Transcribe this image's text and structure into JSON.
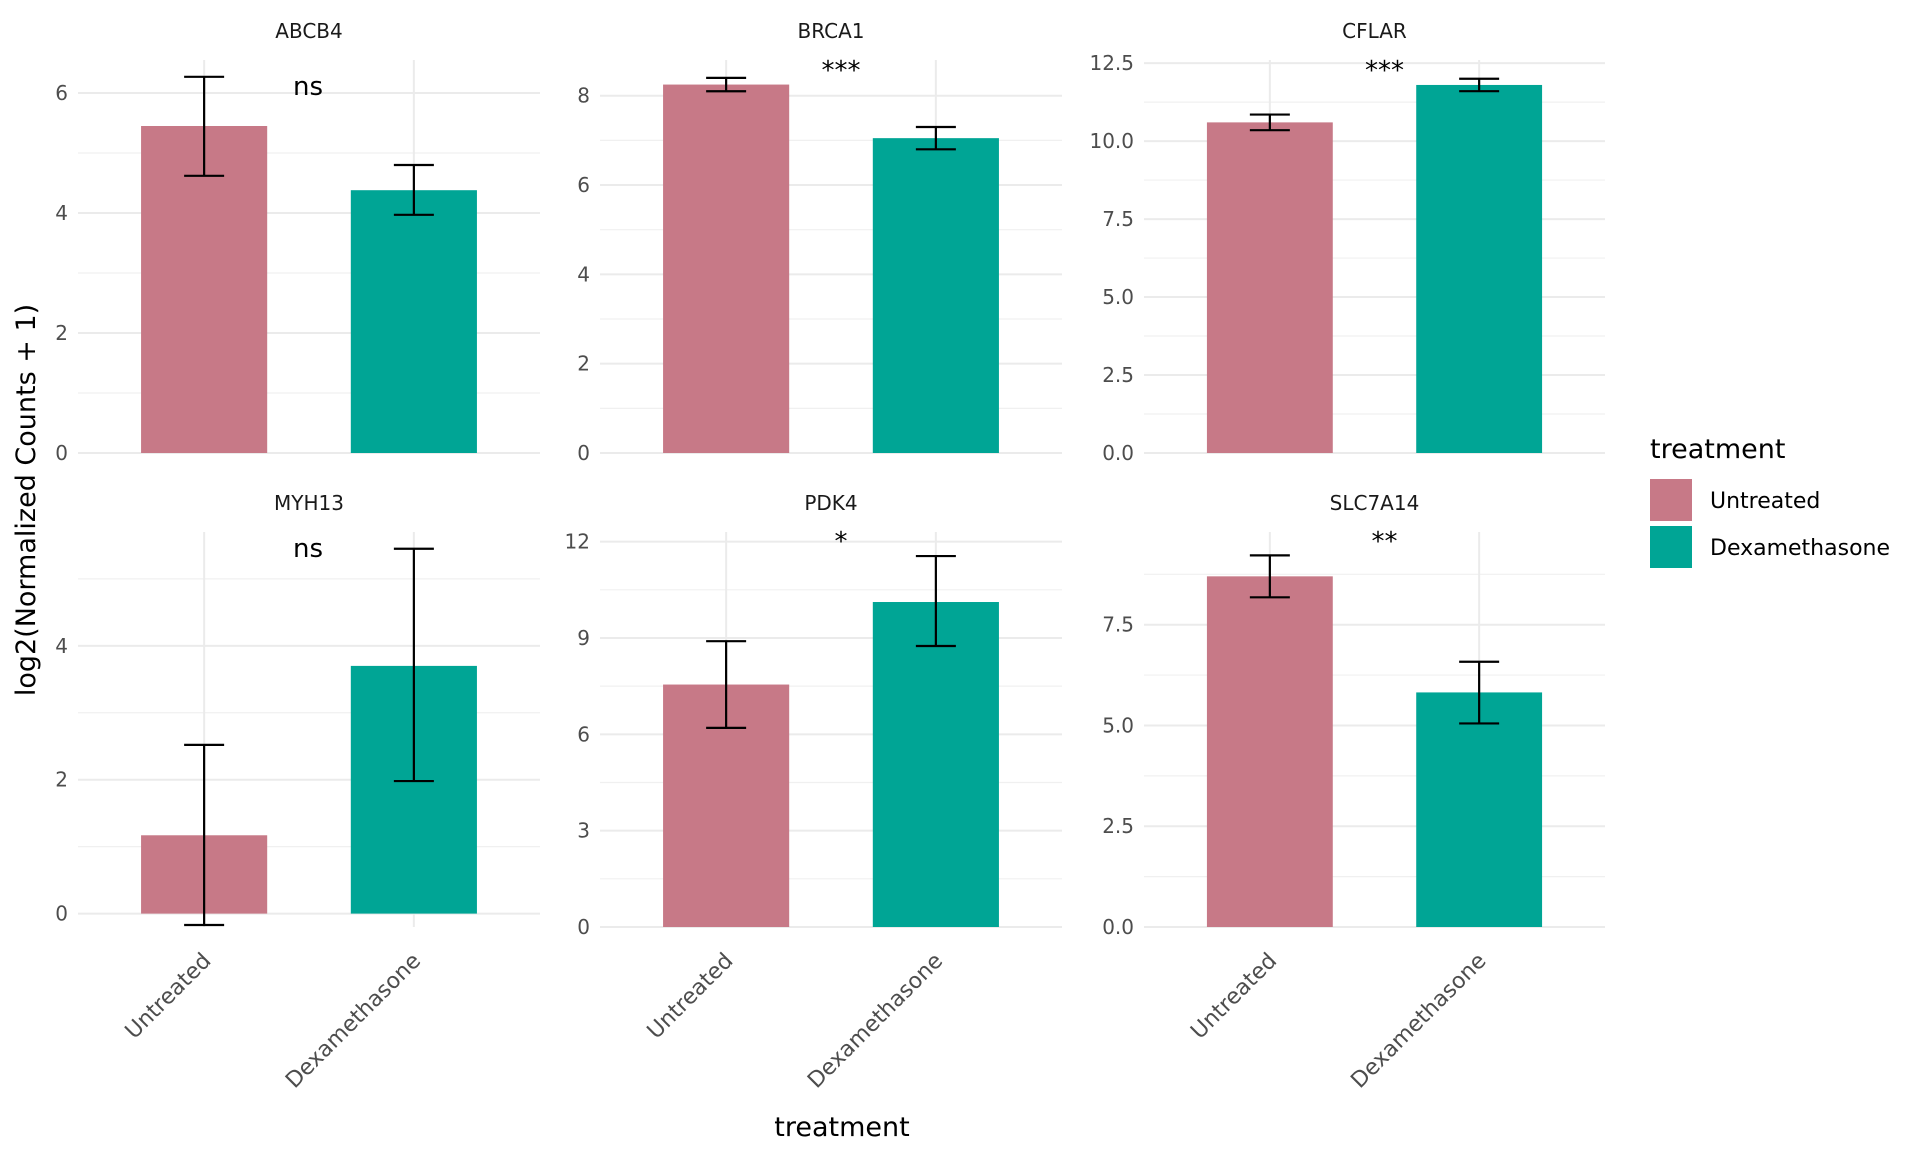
{
  "chart_data": {
    "type": "bar",
    "ylabel": "log2(Normalized Counts + 1)",
    "xlabel": "treatment",
    "categories": [
      "Untreated",
      "Dexamethasone"
    ],
    "colors": {
      "Untreated": "#C77987",
      "Dexamethasone": "#00A595"
    },
    "legend": {
      "title": "treatment",
      "position": "right",
      "entries": [
        {
          "label": "Untreated",
          "color": "#C77987"
        },
        {
          "label": "Dexamethasone",
          "color": "#00A595"
        }
      ]
    },
    "panels": [
      {
        "gene": "ABCB4",
        "significance": "ns",
        "ylim": [
          0,
          6.55
        ],
        "yticks": [
          "0",
          "2",
          "4",
          "6"
        ],
        "ytick_values": [
          0,
          2,
          4,
          6
        ],
        "values": [
          5.45,
          4.38
        ],
        "err_low": [
          4.62,
          3.97
        ],
        "err_high": [
          6.27,
          4.8
        ]
      },
      {
        "gene": "BRCA1",
        "significance": "***",
        "ylim": [
          0,
          8.8
        ],
        "yticks": [
          "0",
          "2",
          "4",
          "6",
          "8"
        ],
        "ytick_values": [
          0,
          2,
          4,
          6,
          8
        ],
        "values": [
          8.25,
          7.05
        ],
        "err_low": [
          8.1,
          6.8
        ],
        "err_high": [
          8.4,
          7.3
        ]
      },
      {
        "gene": "CFLAR",
        "significance": "***",
        "ylim": [
          0,
          12.6
        ],
        "yticks": [
          "0.0",
          "2.5",
          "5.0",
          "7.5",
          "10.0",
          "12.5"
        ],
        "ytick_values": [
          0,
          2.5,
          5,
          7.5,
          10,
          12.5
        ],
        "values": [
          10.6,
          11.8
        ],
        "err_low": [
          10.35,
          11.6
        ],
        "err_high": [
          10.85,
          12.0
        ]
      },
      {
        "gene": "MYH13",
        "significance": "ns",
        "ylim": [
          -0.2,
          5.7
        ],
        "yticks": [
          "0",
          "2",
          "4"
        ],
        "ytick_values": [
          0,
          2,
          4
        ],
        "values": [
          1.17,
          3.7
        ],
        "err_low": [
          -0.17,
          1.98
        ],
        "err_high": [
          2.52,
          5.45
        ]
      },
      {
        "gene": "PDK4",
        "significance": "*",
        "ylim": [
          0,
          12.3
        ],
        "yticks": [
          "0",
          "3",
          "6",
          "9",
          "12"
        ],
        "ytick_values": [
          0,
          3,
          6,
          9,
          12
        ],
        "values": [
          7.55,
          10.12
        ],
        "err_low": [
          6.2,
          8.75
        ],
        "err_high": [
          8.9,
          11.55
        ]
      },
      {
        "gene": "SLC7A14",
        "significance": "**",
        "ylim": [
          0,
          9.8
        ],
        "yticks": [
          "0.0",
          "2.5",
          "5.0",
          "7.5"
        ],
        "ytick_values": [
          0,
          2.5,
          5,
          7.5
        ],
        "values": [
          8.7,
          5.82
        ],
        "err_low": [
          8.18,
          5.05
        ],
        "err_high": [
          9.22,
          6.58
        ]
      }
    ]
  }
}
